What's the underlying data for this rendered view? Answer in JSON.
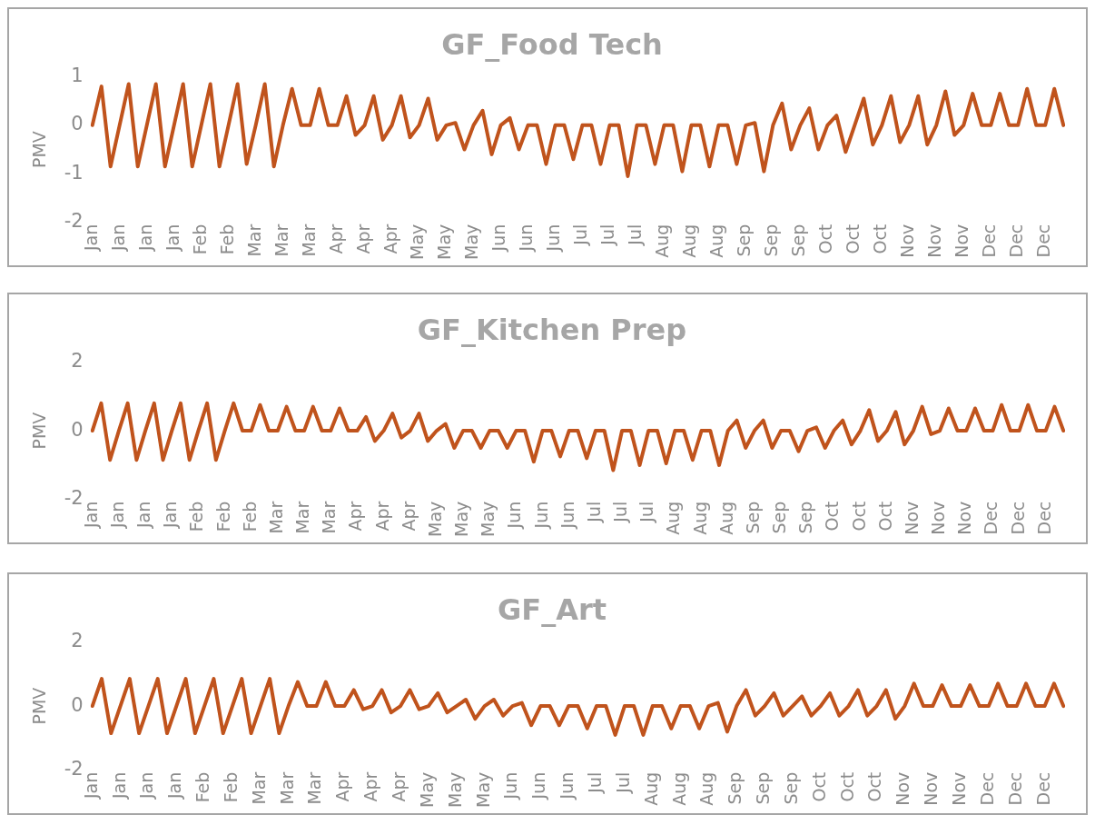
{
  "chart_data": [
    {
      "type": "line",
      "title": "GF_Food Tech",
      "ylabel": "PMV",
      "color": "#c0531c",
      "grid": false,
      "legend": false,
      "marker": "none",
      "ylim": [
        -2,
        1
      ],
      "yticks": [
        -2,
        -1,
        0,
        1
      ],
      "categories": [
        "Jan",
        null,
        null,
        "Jan",
        null,
        null,
        "Jan",
        null,
        null,
        "Jan",
        null,
        null,
        "Feb",
        null,
        null,
        "Feb",
        null,
        null,
        "Mar",
        null,
        null,
        "Mar",
        null,
        null,
        "Mar",
        null,
        null,
        "Apr",
        null,
        null,
        "Apr",
        null,
        null,
        "Apr",
        null,
        null,
        "May",
        null,
        null,
        "May",
        null,
        null,
        "May",
        null,
        null,
        "Jun",
        null,
        null,
        "Jun",
        null,
        null,
        "Jun",
        null,
        null,
        "Jul",
        null,
        null,
        "Jul",
        null,
        null,
        "Jul",
        null,
        null,
        "Aug",
        null,
        null,
        "Aug",
        null,
        null,
        "Aug",
        null,
        null,
        "Sep",
        null,
        null,
        "Sep",
        null,
        null,
        "Sep",
        null,
        null,
        "Oct",
        null,
        null,
        "Oct",
        null,
        null,
        "Oct",
        null,
        null,
        "Nov",
        null,
        null,
        "Nov",
        null,
        null,
        "Nov",
        null,
        null,
        "Dec",
        null,
        null,
        "Dec",
        null,
        null,
        "Dec",
        null,
        null
      ],
      "values": [
        0,
        0.8,
        -0.85,
        0,
        0.85,
        -0.85,
        0,
        0.85,
        -0.85,
        0,
        0.85,
        -0.85,
        0,
        0.85,
        -0.85,
        0,
        0.85,
        -0.8,
        0,
        0.85,
        -0.85,
        0,
        0.75,
        0,
        0,
        0.75,
        0,
        0,
        0.6,
        -0.2,
        0,
        0.6,
        -0.3,
        0,
        0.6,
        -0.25,
        0,
        0.55,
        -0.3,
        0,
        0.05,
        -0.5,
        0,
        0.3,
        -0.6,
        0,
        0.15,
        -0.5,
        0,
        0,
        -0.8,
        0,
        0,
        -0.7,
        0,
        0,
        -0.8,
        0,
        0,
        -1.05,
        0,
        0,
        -0.8,
        0,
        0,
        -0.95,
        0,
        0,
        -0.85,
        0,
        0,
        -0.8,
        0,
        0.05,
        -0.95,
        0,
        0.45,
        -0.5,
        0,
        0.35,
        -0.5,
        0,
        0.2,
        -0.55,
        0,
        0.55,
        -0.4,
        0,
        0.6,
        -0.35,
        0,
        0.6,
        -0.4,
        0,
        0.7,
        -0.2,
        0,
        0.65,
        0,
        0,
        0.65,
        0,
        0,
        0.75,
        0,
        0,
        0.75,
        0
      ]
    },
    {
      "type": "line",
      "title": "GF_Kitchen Prep",
      "ylabel": "PMV",
      "color": "#c0531c",
      "grid": false,
      "legend": false,
      "marker": "none",
      "ylim": [
        -2,
        2
      ],
      "yticks": [
        -2,
        0,
        2
      ],
      "categories": [
        "Jan",
        null,
        null,
        "Jan",
        null,
        null,
        "Jan",
        null,
        null,
        "Jan",
        null,
        null,
        "Feb",
        null,
        null,
        "Feb",
        null,
        null,
        "Feb",
        null,
        null,
        "Mar",
        null,
        null,
        "Mar",
        null,
        null,
        "Mar",
        null,
        null,
        "Apr",
        null,
        null,
        "Apr",
        null,
        null,
        "Apr",
        null,
        null,
        "May",
        null,
        null,
        "May",
        null,
        null,
        "May",
        null,
        null,
        "Jun",
        null,
        null,
        "Jun",
        null,
        null,
        "Jun",
        null,
        null,
        "Jul",
        null,
        null,
        "Jul",
        null,
        null,
        "Jul",
        null,
        null,
        "Aug",
        null,
        null,
        "Aug",
        null,
        null,
        "Aug",
        null,
        null,
        "Sep",
        null,
        null,
        "Sep",
        null,
        null,
        "Sep",
        null,
        null,
        "Oct",
        null,
        null,
        "Oct",
        null,
        null,
        "Oct",
        null,
        null,
        "Nov",
        null,
        null,
        "Nov",
        null,
        null,
        "Nov",
        null,
        null,
        "Dec",
        null,
        null,
        "Dec",
        null,
        null,
        "Dec",
        null,
        null
      ],
      "values": [
        0,
        0.8,
        -0.85,
        0,
        0.8,
        -0.85,
        0,
        0.8,
        -0.85,
        0,
        0.8,
        -0.85,
        0,
        0.8,
        -0.85,
        0,
        0.8,
        0,
        0,
        0.75,
        0,
        0,
        0.7,
        0,
        0,
        0.7,
        0,
        0,
        0.65,
        0,
        0,
        0.4,
        -0.3,
        0,
        0.5,
        -0.2,
        0,
        0.5,
        -0.3,
        0,
        0.2,
        -0.5,
        0,
        0,
        -0.5,
        0,
        0,
        -0.5,
        0,
        0,
        -0.9,
        0,
        0,
        -0.75,
        0,
        0,
        -0.8,
        0,
        0,
        -1.15,
        0,
        0,
        -1,
        0,
        0,
        -0.95,
        0,
        0,
        -0.85,
        0,
        0,
        -1,
        0,
        0.3,
        -0.5,
        0,
        0.3,
        -0.5,
        0,
        0,
        -0.6,
        0,
        0.1,
        -0.5,
        0,
        0.3,
        -0.4,
        0,
        0.6,
        -0.3,
        0,
        0.55,
        -0.4,
        0,
        0.7,
        -0.1,
        0,
        0.65,
        0,
        0,
        0.65,
        0,
        0,
        0.75,
        0,
        0,
        0.75,
        0,
        0,
        0.7,
        0
      ]
    },
    {
      "type": "line",
      "title": "GF_Art",
      "ylabel": "PMV",
      "color": "#c0531c",
      "grid": false,
      "legend": false,
      "marker": "none",
      "ylim": [
        -2,
        2
      ],
      "yticks": [
        -2,
        0,
        2
      ],
      "categories": [
        "Jan",
        null,
        null,
        "Jan",
        null,
        null,
        "Jan",
        null,
        null,
        "Jan",
        null,
        null,
        "Feb",
        null,
        null,
        "Feb",
        null,
        null,
        "Mar",
        null,
        null,
        "Mar",
        null,
        null,
        "Mar",
        null,
        null,
        "Apr",
        null,
        null,
        "Apr",
        null,
        null,
        "Apr",
        null,
        null,
        "May",
        null,
        null,
        "May",
        null,
        null,
        "May",
        null,
        null,
        "Jun",
        null,
        null,
        "Jun",
        null,
        null,
        "Jun",
        null,
        null,
        "Jul",
        null,
        null,
        "Jul",
        null,
        null,
        "Aug",
        null,
        null,
        "Aug",
        null,
        null,
        "Aug",
        null,
        null,
        "Sep",
        null,
        null,
        "Sep",
        null,
        null,
        "Sep",
        null,
        null,
        "Oct",
        null,
        null,
        "Oct",
        null,
        null,
        "Oct",
        null,
        null,
        "Nov",
        null,
        null,
        "Nov",
        null,
        null,
        "Nov",
        null,
        null,
        "Dec",
        null,
        null,
        "Dec",
        null,
        null,
        "Dec",
        null,
        null
      ],
      "values": [
        0,
        0.85,
        -0.85,
        0,
        0.85,
        -0.85,
        0,
        0.85,
        -0.85,
        0,
        0.85,
        -0.85,
        0,
        0.85,
        -0.85,
        0,
        0.85,
        -0.85,
        0,
        0.85,
        -0.85,
        0,
        0.75,
        0,
        0,
        0.75,
        0,
        0,
        0.5,
        -0.1,
        0,
        0.5,
        -0.2,
        0,
        0.5,
        -0.1,
        0,
        0.4,
        -0.2,
        0,
        0.2,
        -0.4,
        0,
        0.2,
        -0.3,
        0,
        0.1,
        -0.6,
        0,
        0,
        -0.6,
        0,
        0,
        -0.7,
        0,
        0,
        -0.9,
        0,
        0,
        -0.9,
        0,
        0,
        -0.7,
        0,
        0,
        -0.7,
        0,
        0.1,
        -0.8,
        0,
        0.5,
        -0.3,
        0,
        0.4,
        -0.3,
        0,
        0.3,
        -0.3,
        0,
        0.4,
        -0.3,
        0,
        0.5,
        -0.3,
        0,
        0.5,
        -0.4,
        0,
        0.7,
        0,
        0,
        0.65,
        0,
        0,
        0.65,
        0,
        0,
        0.7,
        0,
        0,
        0.7,
        0,
        0,
        0.7,
        0
      ]
    }
  ]
}
